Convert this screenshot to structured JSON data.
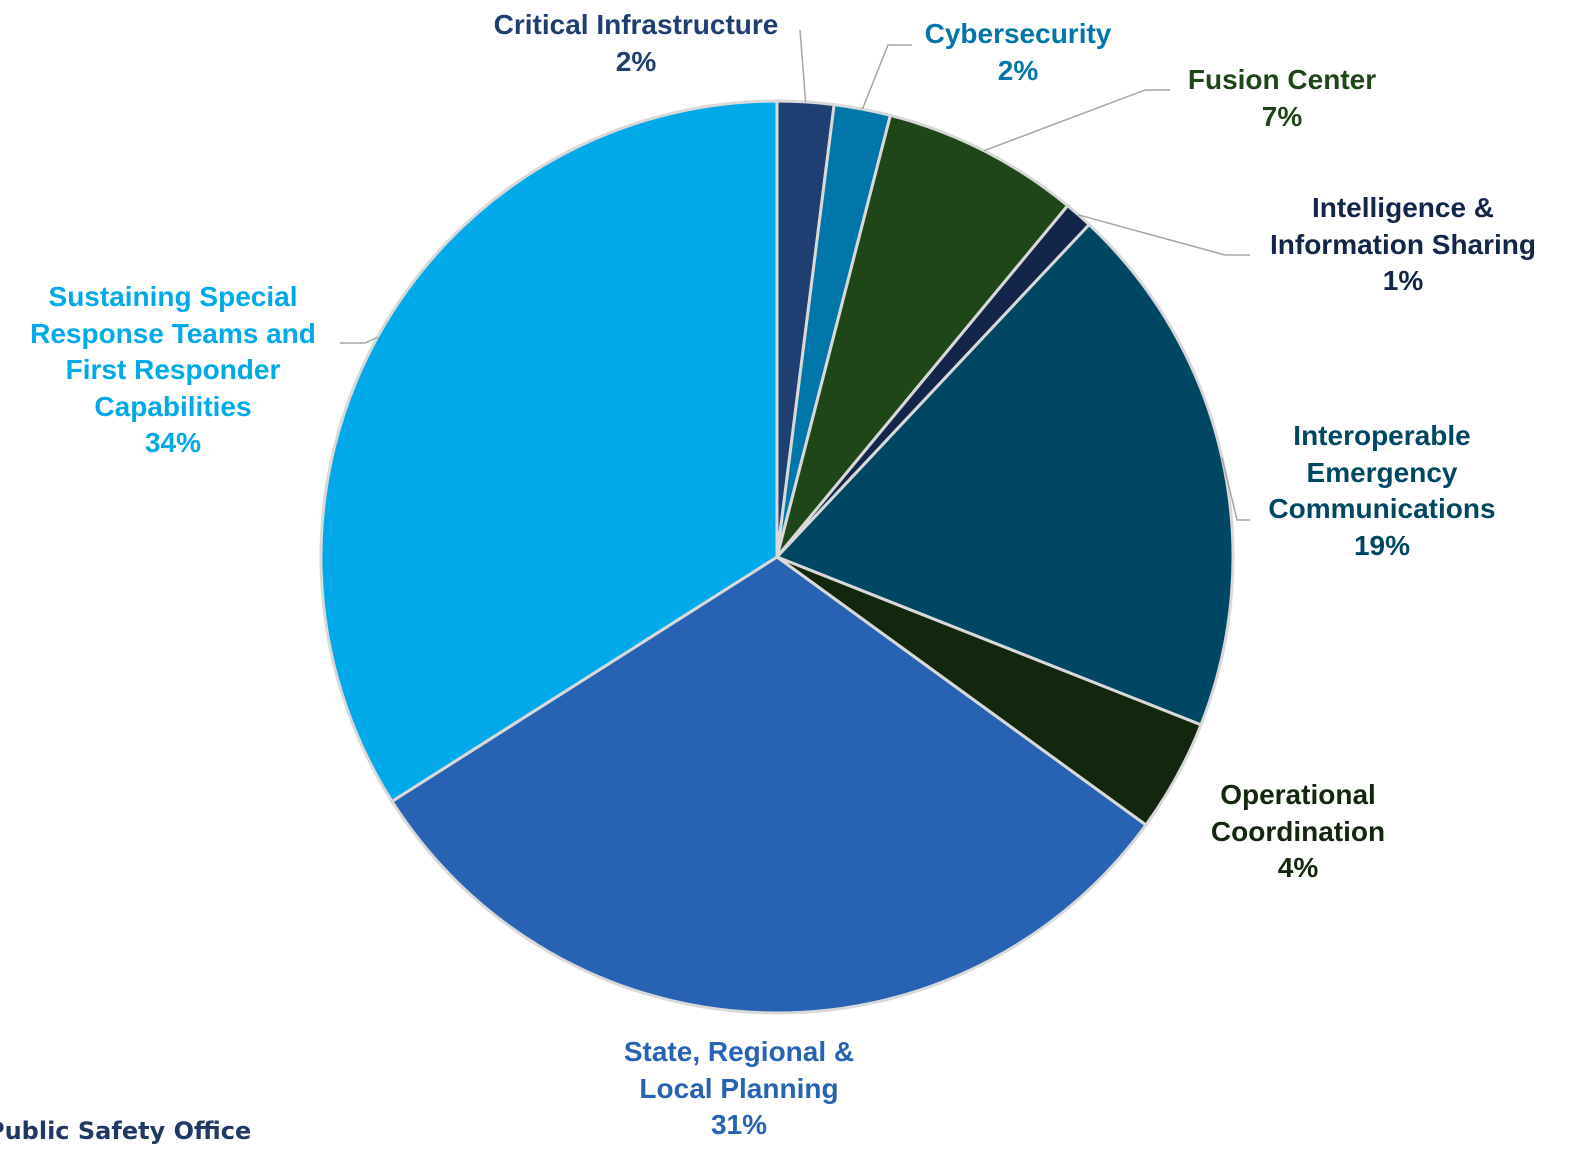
{
  "chart_data": {
    "type": "pie",
    "categories": [
      "Critical Infrastructure",
      "Cybersecurity",
      "Fusion Center",
      "Intelligence & Information Sharing",
      "Interoperable Emergency Communications",
      "Operational Coordination",
      "State, Regional & Local Planning",
      "Sustaining Special Response Teams and First Responder Capabilities"
    ],
    "values": [
      2,
      2,
      7,
      1,
      19,
      4,
      31,
      34
    ],
    "value_labels": [
      "2%",
      "2%",
      "7%",
      "1%",
      "19%",
      "4%",
      "31%",
      "34%"
    ],
    "colors": [
      "#1f3f73",
      "#0077a8",
      "#1f4618",
      "#13264a",
      "#004763",
      "#13270e",
      "#2862b2",
      "#00aae8"
    ]
  },
  "footer": "Public Safety Office"
}
